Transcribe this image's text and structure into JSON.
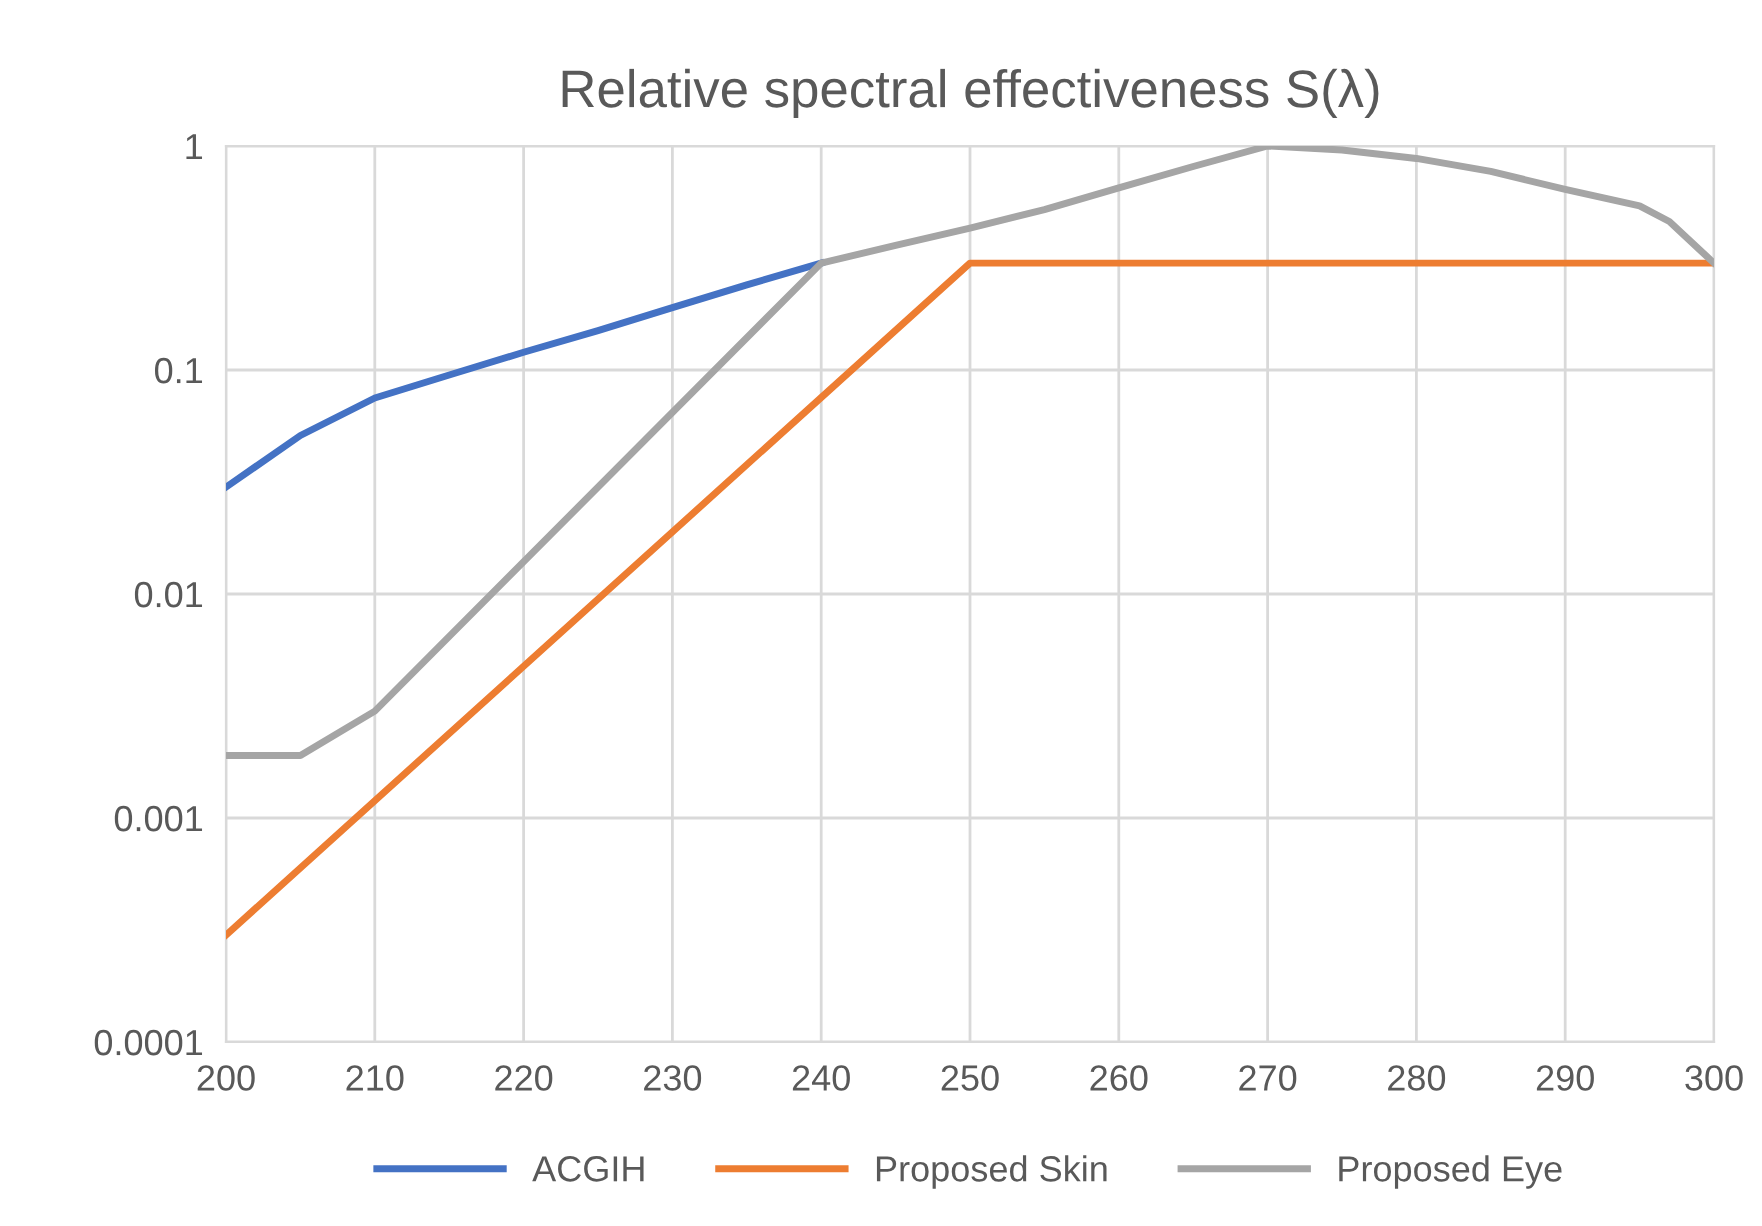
{
  "chart_data": {
    "type": "line",
    "title": "Relative spectral effectiveness S(λ)",
    "series": [
      {
        "name": "ACGIH",
        "color": "#4472c4",
        "x": [
          200,
          205,
          210,
          215,
          220,
          225,
          230,
          235,
          240
        ],
        "values": [
          0.03,
          0.051,
          0.075,
          0.095,
          0.12,
          0.15,
          0.19,
          0.24,
          0.3
        ]
      },
      {
        "name": "Proposed Skin",
        "color": "#ed7d31",
        "x": [
          200,
          250,
          300
        ],
        "values": [
          0.0003,
          0.3,
          0.3
        ]
      },
      {
        "name": "Proposed Eye",
        "color": "#a5a5a5",
        "x": [
          200,
          205,
          210,
          240,
          245,
          250,
          255,
          260,
          265,
          270,
          275,
          280,
          285,
          290,
          295,
          297,
          300
        ],
        "values": [
          0.0019,
          0.0019,
          0.003,
          0.3,
          0.36,
          0.43,
          0.52,
          0.65,
          0.81,
          1.0,
          0.96,
          0.88,
          0.77,
          0.64,
          0.54,
          0.46,
          0.3
        ]
      }
    ],
    "xlim": [
      200,
      300
    ],
    "xticks": [
      200,
      210,
      220,
      230,
      240,
      250,
      260,
      270,
      280,
      290,
      300
    ],
    "ylim": [
      0.0001,
      1
    ],
    "yticks": [
      0.0001,
      0.001,
      0.01,
      0.1,
      1
    ],
    "log": "y",
    "grid": true,
    "legend": "bottom",
    "marker": "none",
    "line_style": "solid"
  }
}
